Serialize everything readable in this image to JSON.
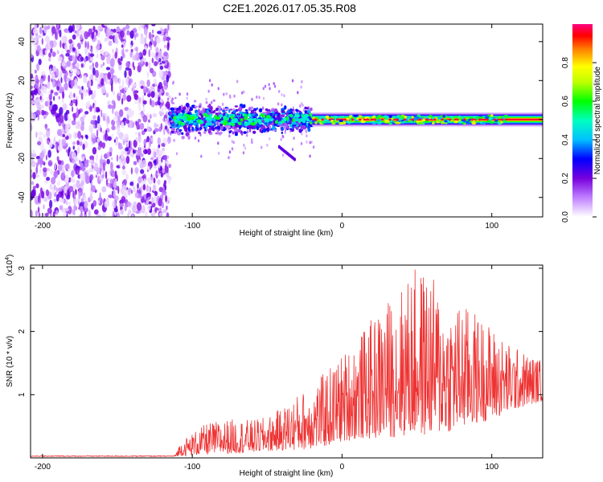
{
  "title": "C2E1.2026.017.05.35.R08",
  "chart_data": [
    {
      "type": "heatmap",
      "title": "C2E1.2026.017.05.35.R08",
      "xlabel": "Height of straight line (km)",
      "ylabel": "Frequency (Hz)",
      "xlim": [
        -208,
        134
      ],
      "ylim": [
        -50,
        49
      ],
      "x_ticks": [
        -200,
        -100,
        0,
        100
      ],
      "x_tick_labels": [
        "-200",
        "-100",
        "0",
        "100"
      ],
      "y_ticks": [
        -40,
        -20,
        0,
        20,
        40
      ],
      "y_tick_labels": [
        "-40",
        "-20",
        "0",
        "20",
        "40"
      ],
      "colorbar": {
        "label": "Normalized spectral amplitude",
        "range": [
          0,
          1
        ],
        "ticks": [
          0.0,
          0.2,
          0.4,
          0.6,
          0.8
        ],
        "tick_labels": [
          "0.0",
          "0.2",
          "0.4",
          "0.6",
          "0.8"
        ],
        "colors": [
          "#ffffff",
          "#7700dd",
          "#0000ff",
          "#00ffff",
          "#00ff00",
          "#ffff00",
          "#ff0000",
          "#ff00a0"
        ]
      },
      "regions": [
        {
          "name": "noise",
          "x_range": [
            -208,
            -115
          ],
          "freq_range": [
            -50,
            49
          ],
          "amplitude": 0.15
        },
        {
          "name": "spread",
          "x_range": [
            -115,
            -20
          ],
          "freq_range": [
            -8,
            8
          ],
          "amplitude": 0.3
        },
        {
          "name": "signal-line",
          "x_range": [
            -20,
            134
          ],
          "freq": 0,
          "amplitude": 0.95
        }
      ]
    },
    {
      "type": "line",
      "xlabel": "Height of straight line (km)",
      "ylabel": "SNR (10 * v/v)",
      "multiplier_label": "(x10",
      "multiplier_exp": "4",
      "multiplier_close": ")",
      "xlim": [
        -208,
        134
      ],
      "ylim": [
        0,
        3.05
      ],
      "x_ticks": [
        -200,
        -100,
        0,
        100
      ],
      "x_tick_labels": [
        "-200",
        "-100",
        "0",
        "100"
      ],
      "y_ticks": [
        1,
        2,
        3
      ],
      "y_tick_labels": [
        "1",
        "2",
        "3"
      ],
      "series_color": "#ee3333",
      "envelope": {
        "x": [
          -208,
          -112,
          -108,
          -100,
          -90,
          -80,
          -70,
          -60,
          -50,
          -40,
          -30,
          -20,
          -10,
          0,
          10,
          20,
          30,
          40,
          50,
          60,
          70,
          80,
          90,
          100,
          110,
          120,
          134
        ],
        "low": [
          0.02,
          0.02,
          0.03,
          0.04,
          0.05,
          0.06,
          0.07,
          0.08,
          0.1,
          0.12,
          0.12,
          0.15,
          0.18,
          0.25,
          0.3,
          0.3,
          0.32,
          0.34,
          0.35,
          0.36,
          0.4,
          0.45,
          0.55,
          0.6,
          0.7,
          0.8,
          0.9
        ],
        "high": [
          0.03,
          0.03,
          0.25,
          0.4,
          0.55,
          0.6,
          0.62,
          0.6,
          0.65,
          0.8,
          1.0,
          1.15,
          1.4,
          1.65,
          1.9,
          2.2,
          2.5,
          2.75,
          3.05,
          2.9,
          2.45,
          2.45,
          2.3,
          2.1,
          1.85,
          1.7,
          1.55
        ]
      }
    }
  ]
}
